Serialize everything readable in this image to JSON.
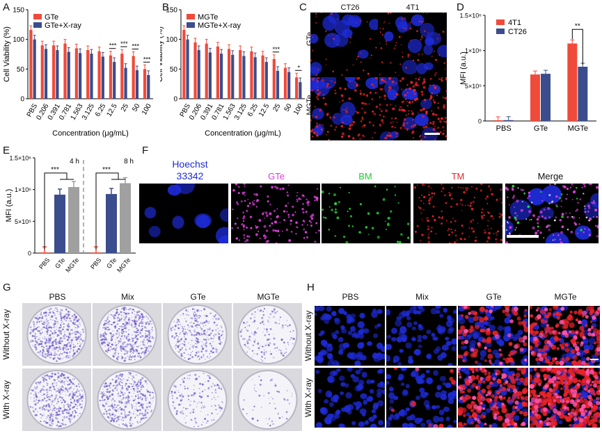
{
  "panel_letters": [
    "A",
    "B",
    "C",
    "D",
    "E",
    "F",
    "G",
    "H"
  ],
  "colors": {
    "red": "#f04a3a",
    "blue": "#3b4d8c",
    "gray": "#a0a0a0",
    "nucleus": "#1e2bd8",
    "red_stain": "#e8232b",
    "magenta": "#e040e0",
    "green": "#22dd33",
    "crystal": "#6a55c8"
  },
  "chart_data": [
    {
      "id": "A",
      "type": "bar",
      "categories": [
        "PBS",
        "0.206",
        "0.391",
        "0.781",
        "1.563",
        "3.125",
        "6.25",
        "12.5",
        "25",
        "50",
        "100"
      ],
      "series": [
        {
          "name": "GTe",
          "values": [
            116,
            90,
            90,
            93,
            85,
            82,
            80,
            73,
            76,
            72,
            50
          ]
        },
        {
          "name": "GTe+X-ray",
          "values": [
            100,
            84,
            82,
            79,
            77,
            76,
            71,
            62,
            52,
            48,
            40
          ]
        }
      ],
      "significance": [
        "",
        "",
        "",
        "",
        "",
        "",
        "",
        "***",
        "***",
        "***",
        "***"
      ],
      "ylabel": "Cell Viability (%)",
      "xlabel": "Concentration (μg/mL)",
      "ylim": [
        0,
        150
      ],
      "yticks": [
        0,
        50,
        100,
        150
      ]
    },
    {
      "id": "B",
      "type": "bar",
      "categories": [
        "PBS",
        "0.206",
        "0.391",
        "0.781",
        "1.563",
        "3.125",
        "6.25",
        "12.5",
        "25",
        "50",
        "100"
      ],
      "series": [
        {
          "name": "MGTe",
          "values": [
            116,
            95,
            93,
            88,
            84,
            82,
            80,
            73,
            67,
            52,
            36
          ]
        },
        {
          "name": "MGTe+X-ray",
          "values": [
            100,
            82,
            78,
            76,
            74,
            72,
            70,
            62,
            47,
            45,
            28
          ]
        }
      ],
      "significance": [
        "",
        "",
        "",
        "",
        "",
        "",
        "",
        "",
        "***",
        "",
        "*"
      ],
      "ylabel": "Cell Viability (%)",
      "xlabel": "Concentration (μg/mL)",
      "ylim": [
        0,
        150
      ],
      "yticks": [
        0,
        50,
        100,
        150
      ]
    },
    {
      "id": "D",
      "type": "bar",
      "categories": [
        "PBS",
        "GTe",
        "MGTe"
      ],
      "series": [
        {
          "name": "4T1",
          "values": [
            10000,
            660000,
            1100000
          ]
        },
        {
          "name": "CT26",
          "values": [
            12000,
            670000,
            770000
          ]
        }
      ],
      "significance_label": "**",
      "ylabel": "MFI (a.u.)",
      "ylim": [
        0,
        1500000
      ],
      "ytick_labels": [
        "0",
        "5×10⁵",
        "1×10⁶",
        "1.5×10⁶"
      ],
      "ytick_values": [
        0,
        500000,
        1000000,
        1500000
      ]
    },
    {
      "id": "E",
      "type": "bar",
      "categories": [
        "PBS",
        "GTe",
        "MGTe",
        "PBS",
        "GTe",
        "MGTe"
      ],
      "values": [
        10000,
        920000,
        1040000,
        10000,
        930000,
        1100000
      ],
      "groups": [
        "4 h",
        "8 h"
      ],
      "significance_label": "***",
      "ylabel": "MFI (a.u.)",
      "ylim": [
        0,
        1500000
      ],
      "ytick_labels": [
        "0",
        "5×10⁵",
        "1×10⁶",
        "1.5×10⁶"
      ],
      "ytick_values": [
        0,
        500000,
        1000000,
        1500000
      ]
    }
  ],
  "panelC": {
    "cols": [
      "CT26",
      "4T1"
    ],
    "rows": [
      "GTe",
      "MGTe"
    ]
  },
  "panelF": {
    "labels": [
      "Hoechst",
      "33342",
      "GTe",
      "BM",
      "TM",
      "Merge"
    ]
  },
  "panelG": {
    "cols": [
      "PBS",
      "Mix",
      "GTe",
      "MGTe"
    ],
    "rows": [
      "Without X-ray",
      "With X-ray"
    ]
  },
  "panelH": {
    "cols": [
      "PBS",
      "Mix",
      "GTe",
      "MGTe"
    ],
    "rows": [
      "Without X-ray",
      "With X-ray"
    ]
  }
}
